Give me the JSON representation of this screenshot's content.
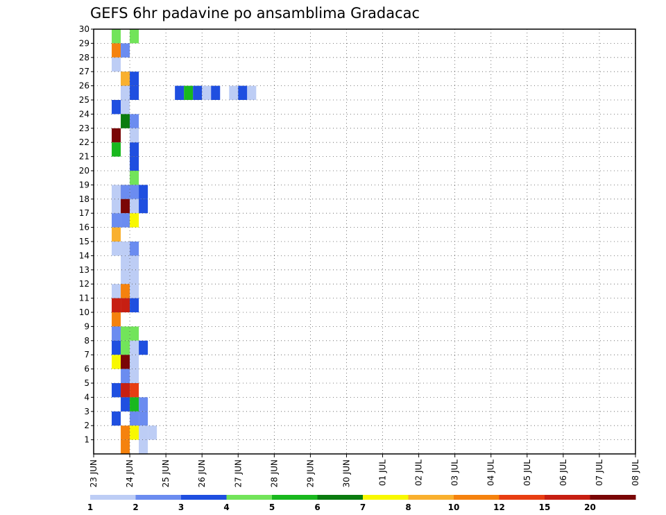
{
  "chart_data": {
    "type": "heatmap",
    "title": "GEFS 6hr padavine po ansamblima Gradacac",
    "y_ticks": [
      "1",
      "2",
      "3",
      "4",
      "5",
      "6",
      "7",
      "8",
      "9",
      "10",
      "11",
      "12",
      "13",
      "14",
      "15",
      "16",
      "17",
      "18",
      "19",
      "20",
      "21",
      "22",
      "23",
      "24",
      "25",
      "26",
      "27",
      "28",
      "29",
      "30"
    ],
    "x_ticks": [
      "23 JUN",
      "24 JUN",
      "25 JUN",
      "26 JUN",
      "27 JUN",
      "28 JUN",
      "29 JUN",
      "30 JUN",
      "01 JUL",
      "02 JUL",
      "03 JUL",
      "04 JUL",
      "05 JUL",
      "06 JUL",
      "07 JUL",
      "08 JUL"
    ],
    "x_steps_per_day": 4,
    "grid": true,
    "colorbar": {
      "colors": [
        "#bdcdf5",
        "#6b8cf0",
        "#1f4fe0",
        "#72e45a",
        "#19b81e",
        "#0a7c0f",
        "#f8f800",
        "#f9b02e",
        "#f5820e",
        "#e83e12",
        "#c71f12",
        "#7a0606"
      ],
      "labels": [
        "1",
        "2",
        "3",
        "4",
        "5",
        "6",
        "7",
        "8",
        "10",
        "12",
        "15",
        "20"
      ]
    },
    "cells": [
      [
        1,
        4,
        1
      ],
      [
        1,
        4,
        9
      ],
      [
        1,
        8,
        10
      ],
      [
        1,
        4,
        2
      ],
      [
        1,
        4,
        6
      ],
      [
        1,
        7,
        3
      ],
      [
        1,
        6,
        9
      ],
      [
        1,
        4,
        10
      ],
      [
        1,
        4,
        11
      ],
      [
        1,
        7,
        2
      ],
      [
        1,
        1,
        17
      ],
      [
        2,
        2,
        6
      ],
      [
        2,
        1,
        19
      ],
      [
        2,
        2,
        2
      ],
      [
        2,
        2,
        5
      ],
      [
        2,
        8,
        11
      ],
      [
        2,
        2,
        7
      ],
      [
        2,
        3,
        5
      ],
      [
        2,
        3,
        14
      ],
      [
        2,
        2,
        23
      ],
      [
        2,
        5,
        25
      ],
      [
        2,
        7,
        27
      ],
      [
        2,
        5,
        28
      ],
      [
        2,
        7,
        30
      ],
      [
        2,
        6,
        32
      ],
      [
        3,
        3,
        6
      ],
      [
        3,
        3,
        11
      ],
      [
        3,
        3,
        2
      ],
      [
        3,
        3,
        3
      ],
      [
        3,
        3,
        4
      ],
      [
        3,
        5,
        8
      ],
      [
        3,
        3,
        13
      ],
      [
        3,
        3,
        17
      ],
      [
        3,
        3,
        21
      ],
      [
        3,
        1,
        23
      ],
      [
        3,
        5,
        24
      ],
      [
        3,
        5,
        25
      ],
      [
        3,
        4,
        26
      ],
      [
        3,
        2,
        31
      ],
      [
        3,
        2,
        32
      ],
      [
        3,
        4,
        35
      ],
      [
        4,
        4,
        17
      ],
      [
        4,
        2,
        25
      ],
      [
        4,
        2,
        36
      ],
      [
        4,
        2,
        6
      ],
      [
        4,
        1,
        1
      ],
      [
        4,
        3,
        23
      ],
      [
        4,
        3,
        18
      ],
      [
        4,
        1,
        4
      ],
      [
        4,
        2,
        2
      ],
      [
        4,
        4,
        2
      ],
      [
        4,
        3,
        4
      ],
      [
        4,
        9,
        22
      ],
      [
        4,
        2,
        12
      ],
      [
        4,
        6,
        8
      ],
      [
        4,
        5,
        3
      ],
      [
        4,
        9,
        15
      ],
      [
        4,
        1,
        20
      ],
      [
        4,
        5,
        24
      ],
      [
        4,
        4,
        2
      ],
      [
        5,
        6,
        29
      ],
      [
        5,
        6,
        12
      ],
      [
        5,
        3,
        3
      ],
      [
        5,
        1,
        25
      ],
      [
        5,
        3,
        18
      ],
      [
        5,
        3,
        22
      ],
      [
        5,
        3,
        10
      ],
      [
        5,
        2,
        26
      ],
      [
        5,
        1,
        26
      ],
      [
        5,
        5,
        14
      ],
      [
        5,
        5,
        2
      ],
      [
        5,
        6,
        29
      ],
      [
        5,
        6,
        32
      ],
      [
        5,
        5,
        2
      ],
      [
        5,
        2,
        11
      ],
      [
        5,
        1,
        12
      ],
      [
        5,
        2,
        4
      ],
      [
        5,
        2,
        24
      ],
      [
        5,
        1,
        16
      ],
      [
        5,
        5,
        15
      ],
      [
        5,
        7,
        26
      ],
      [
        5,
        4,
        27
      ],
      [
        5,
        2,
        28
      ],
      [
        5,
        5,
        36
      ],
      [
        5,
        2,
        18
      ],
      [
        5,
        5,
        9
      ],
      [
        5,
        1,
        19
      ],
      [
        5,
        6,
        6
      ],
      [
        5,
        5,
        29
      ],
      [
        5,
        3,
        31
      ],
      [
        5,
        5,
        4
      ],
      [
        5,
        6,
        21
      ],
      [
        5,
        6,
        10
      ]
    ],
    "cell_note": "each cell = [level(1-12), unused, unused] placeholder; full grid below",
    "grid_cells": [
      [
        0,
        29,
        4
      ],
      [
        2,
        29,
        4
      ],
      [
        0,
        28,
        9
      ],
      [
        1,
        28,
        2
      ],
      [
        0,
        27,
        1
      ],
      [
        1,
        26,
        1
      ],
      [
        1,
        26,
        8
      ],
      [
        2,
        26,
        3
      ],
      [
        1,
        25,
        2
      ],
      [
        1,
        25,
        1
      ],
      [
        2,
        25,
        3
      ],
      [
        7,
        25,
        3
      ],
      [
        8,
        25,
        5
      ],
      [
        9,
        25,
        3
      ],
      [
        10,
        25,
        1
      ],
      [
        11,
        25,
        3
      ],
      [
        13,
        25,
        1
      ],
      [
        14,
        25,
        3
      ],
      [
        15,
        25,
        1
      ],
      [
        0,
        24,
        3
      ],
      [
        1,
        24,
        1
      ],
      [
        1,
        23,
        6
      ],
      [
        2,
        23,
        2
      ],
      [
        0,
        22,
        12
      ],
      [
        2,
        22,
        1
      ],
      [
        0,
        21,
        5
      ],
      [
        2,
        21,
        3
      ],
      [
        2,
        20,
        3
      ],
      [
        2,
        19,
        4
      ],
      [
        0,
        18,
        1
      ],
      [
        1,
        18,
        8
      ],
      [
        1,
        18,
        2
      ],
      [
        2,
        18,
        2
      ],
      [
        3,
        18,
        3
      ],
      [
        0,
        17,
        1
      ],
      [
        1,
        17,
        12
      ],
      [
        2,
        17,
        1
      ],
      [
        3,
        17,
        3
      ],
      [
        0,
        16,
        2
      ],
      [
        1,
        16,
        2
      ],
      [
        2,
        16,
        7
      ],
      [
        0,
        15,
        8
      ],
      [
        0,
        14,
        1
      ],
      [
        1,
        14,
        1
      ],
      [
        2,
        14,
        2
      ],
      [
        1,
        13,
        1
      ],
      [
        2,
        13,
        1
      ],
      [
        1,
        12,
        1
      ],
      [
        2,
        12,
        1
      ],
      [
        0,
        11,
        1
      ],
      [
        1,
        11,
        9
      ],
      [
        2,
        11,
        1
      ],
      [
        0,
        10,
        11
      ],
      [
        1,
        10,
        11
      ],
      [
        2,
        10,
        3
      ],
      [
        0,
        9,
        9
      ],
      [
        0,
        8,
        2
      ],
      [
        1,
        8,
        4
      ],
      [
        2,
        8,
        4
      ],
      [
        0,
        7,
        3
      ],
      [
        1,
        7,
        4
      ],
      [
        2,
        7,
        1
      ],
      [
        3,
        7,
        3
      ],
      [
        0,
        6,
        7
      ],
      [
        1,
        6,
        12
      ],
      [
        2,
        6,
        1
      ],
      [
        1,
        5,
        2
      ],
      [
        2,
        5,
        1
      ],
      [
        0,
        4,
        3
      ],
      [
        1,
        4,
        11
      ],
      [
        2,
        4,
        10
      ],
      [
        1,
        3,
        3
      ],
      [
        2,
        3,
        5
      ],
      [
        3,
        3,
        2
      ],
      [
        0,
        2,
        3
      ],
      [
        2,
        2,
        2
      ],
      [
        3,
        2,
        2
      ],
      [
        1,
        1,
        9
      ],
      [
        2,
        1,
        7
      ],
      [
        3,
        1,
        1
      ],
      [
        4,
        1,
        1
      ],
      [
        1,
        0,
        9
      ],
      [
        3,
        0,
        1
      ]
    ]
  }
}
